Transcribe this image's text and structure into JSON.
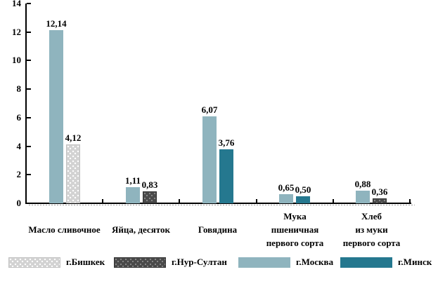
{
  "chart_data": {
    "type": "bar",
    "title": "",
    "xlabel": "",
    "ylabel": "",
    "ylim": [
      0,
      14
    ],
    "yticks": [
      0,
      2,
      4,
      6,
      8,
      10,
      12,
      14
    ],
    "grid": false,
    "legend_position": "bottom",
    "decimal_separator": ",",
    "categories": [
      "Масло сливочное",
      "Яйца, десяток",
      "Говядина",
      "Мука пшеничная первого сорта",
      "Хлеб из муки первого сорта"
    ],
    "category_label_lines": [
      [
        "Масло сливочное"
      ],
      [
        "Яйца, десяток"
      ],
      [
        "Говядина"
      ],
      [
        "Мука",
        "пшеничная",
        "первого сорта"
      ],
      [
        "Хлеб",
        "из муки",
        "первого сорта"
      ]
    ],
    "series": [
      {
        "name": "г.Бишкек",
        "color": "#D2D2D2",
        "pattern": "dots-light",
        "values": [
          4.12,
          null,
          null,
          null,
          null
        ]
      },
      {
        "name": "г.Нур-Султан",
        "color": "#4A4A4A",
        "pattern": "dots-dark",
        "values": [
          null,
          0.83,
          null,
          null,
          0.36
        ]
      },
      {
        "name": "г.Москва",
        "color": "#8FB4BE",
        "pattern": "solid-moscow",
        "values": [
          12.14,
          1.11,
          6.07,
          0.65,
          0.88
        ]
      },
      {
        "name": "г.Минск",
        "color": "#25788F",
        "pattern": "solid-minsk",
        "values": [
          null,
          null,
          3.76,
          0.5,
          null
        ]
      }
    ],
    "bar_draw_order": [
      2,
      0,
      1,
      3
    ],
    "value_labels": {
      "Масло сливочное": {
        "г.Москва": "12,14",
        "г.Бишкек": "4,12"
      },
      "Яйца, десяток": {
        "г.Москва": "1,11",
        "г.Нур-Султан": "0,83"
      },
      "Говядина": {
        "г.Москва": "6,07",
        "г.Минск": "3,76"
      },
      "Мука пшеничная первого сорта": {
        "г.Москва": "0,65",
        "г.Минск": "0,50"
      },
      "Хлеб из муки первого сорта": {
        "г.Москва": "0,88",
        "г.Нур-Султан": "0,36"
      }
    },
    "legend": [
      {
        "label": "г.Бишкек",
        "pattern": "dots-light"
      },
      {
        "label": "г.Нур-Султан",
        "pattern": "dots-dark"
      },
      {
        "label": "г.Москва",
        "pattern": "solid-moscow"
      },
      {
        "label": "г.Минск",
        "pattern": "solid-minsk"
      }
    ]
  }
}
